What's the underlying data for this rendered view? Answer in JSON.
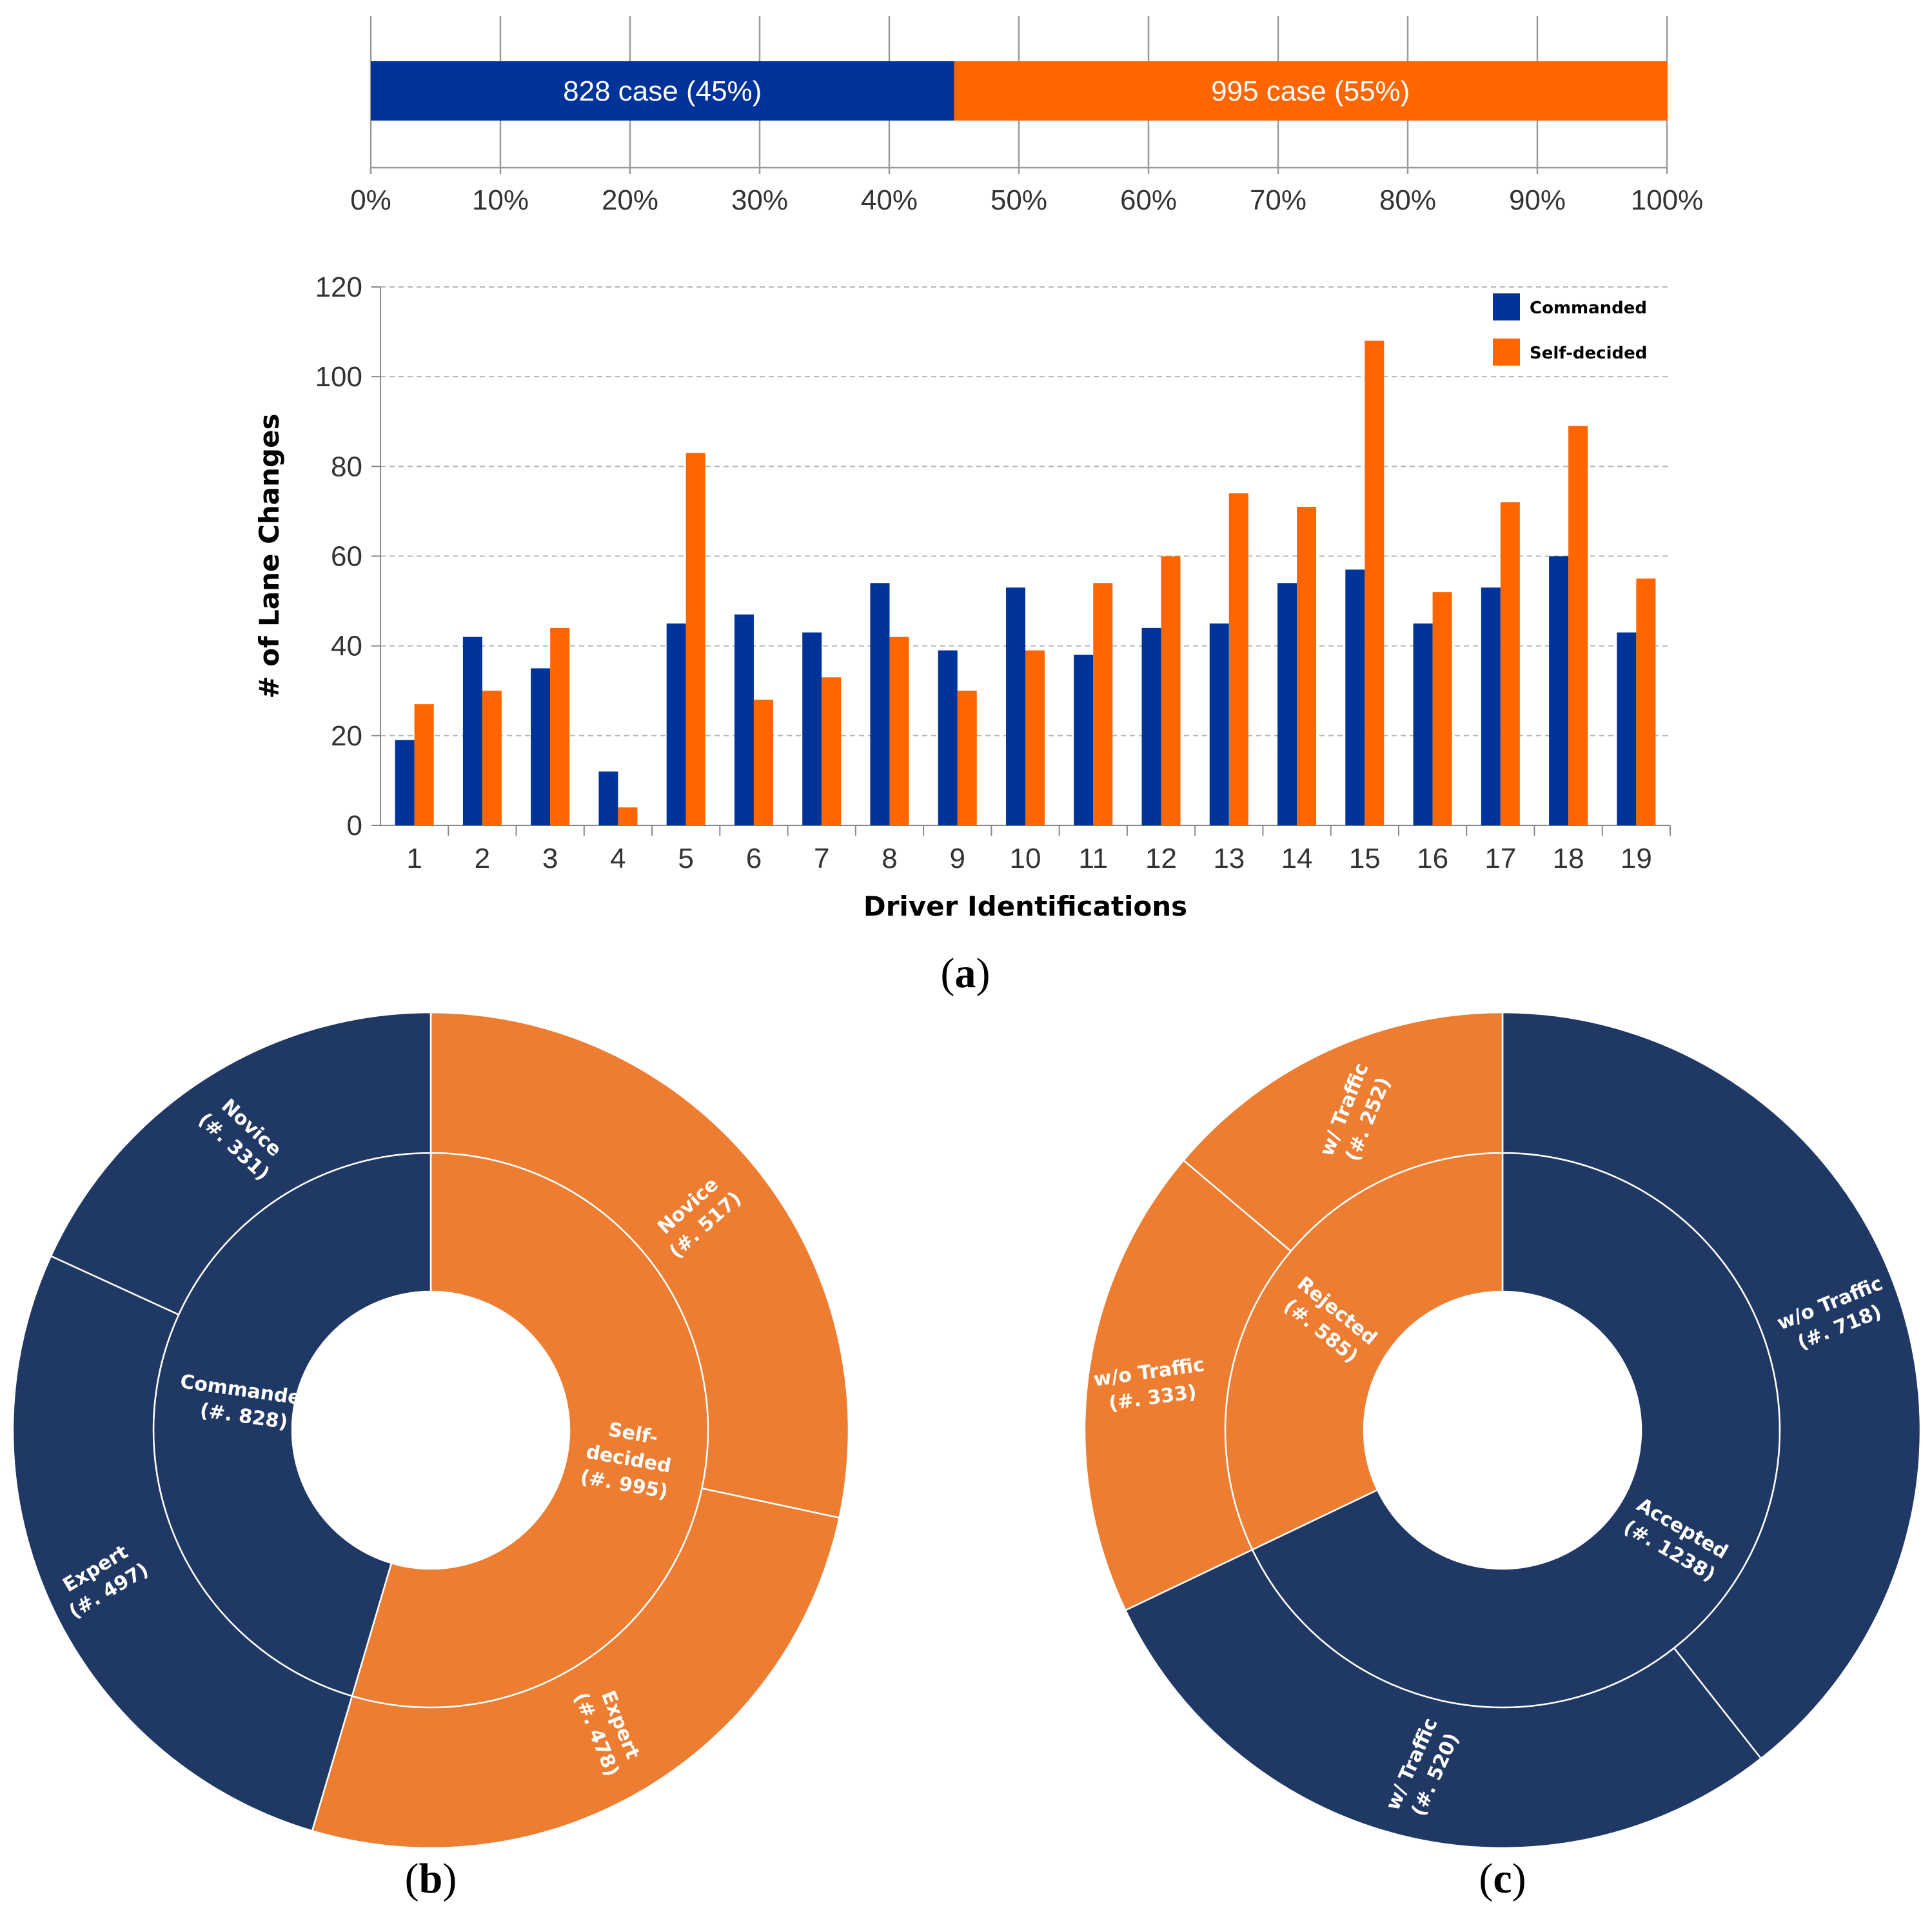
{
  "colors": {
    "commanded": "#003399",
    "self_decided": "#ff6600",
    "navy": "#203864",
    "orange": "#ed7d31"
  },
  "chart_data": [
    {
      "id": "a-top",
      "type": "bar",
      "orientation": "horizontal-stacked-100",
      "series": [
        {
          "name": "Commanded",
          "value": 45,
          "label": "828 case (45%)"
        },
        {
          "name": "Self-decided",
          "value": 55,
          "label": "995 case (55%)"
        }
      ],
      "xlim": [
        0,
        100
      ],
      "xticks": [
        "0%",
        "10%",
        "20%",
        "30%",
        "40%",
        "50%",
        "60%",
        "70%",
        "80%",
        "90%",
        "100%"
      ]
    },
    {
      "id": "a-bottom",
      "type": "bar",
      "categories": [
        "1",
        "2",
        "3",
        "4",
        "5",
        "6",
        "7",
        "8",
        "9",
        "10",
        "11",
        "12",
        "13",
        "14",
        "15",
        "16",
        "17",
        "18",
        "19"
      ],
      "series": [
        {
          "name": "Commanded",
          "values": [
            19,
            42,
            35,
            12,
            45,
            47,
            43,
            54,
            39,
            53,
            38,
            44,
            45,
            54,
            57,
            45,
            53,
            60,
            43
          ]
        },
        {
          "name": "Self-decided",
          "values": [
            27,
            30,
            44,
            4,
            83,
            28,
            33,
            42,
            30,
            39,
            54,
            60,
            74,
            71,
            108,
            52,
            72,
            89,
            55
          ]
        }
      ],
      "xlabel": "Driver  Identifications",
      "ylabel": "# of Lane Changes",
      "ylim": [
        0,
        120
      ],
      "yticks": [
        0,
        20,
        40,
        60,
        80,
        100,
        120
      ],
      "legend": "top-right",
      "grid": true
    },
    {
      "id": "b",
      "type": "pie",
      "subtype": "sunburst",
      "inner": [
        {
          "label": [
            "Commanded",
            "(#. 828)"
          ],
          "value": 828,
          "color": "navy"
        },
        {
          "label": [
            "Self-",
            "decided",
            "(#. 995)"
          ],
          "value": 995,
          "color": "orange"
        }
      ],
      "outer": [
        {
          "label": [
            "Novice",
            "(#. 331)"
          ],
          "value": 331,
          "color": "navy"
        },
        {
          "label": [
            "Expert",
            "(#. 497)"
          ],
          "value": 497,
          "color": "navy"
        },
        {
          "label": [
            "Novice",
            "(#. 517)"
          ],
          "value": 517,
          "color": "orange"
        },
        {
          "label": [
            "Expert",
            "(#. 478)"
          ],
          "value": 478,
          "color": "orange"
        }
      ]
    },
    {
      "id": "c",
      "type": "pie",
      "subtype": "sunburst",
      "inner": [
        {
          "label": [
            "Accepted",
            "(#. 1238)"
          ],
          "value": 1238,
          "color": "navy"
        },
        {
          "label": [
            "Rejected",
            "(#. 585)"
          ],
          "value": 585,
          "color": "orange"
        }
      ],
      "outer": [
        {
          "label": [
            "w/o Traffic",
            "(#. 718)"
          ],
          "value": 718,
          "color": "navy"
        },
        {
          "label": [
            "w/ Traffic",
            "(#. 520)"
          ],
          "value": 520,
          "color": "navy"
        },
        {
          "label": [
            "w/o Traffic",
            "(#. 333)"
          ],
          "value": 333,
          "color": "orange"
        },
        {
          "label": [
            "w/ Traffic",
            "(#. 252)"
          ],
          "value": 252,
          "color": "orange"
        }
      ]
    }
  ],
  "panel_labels": {
    "a": {
      "open": "(",
      "letter": "a",
      "close": ")"
    },
    "b": {
      "open": "(",
      "letter": "b",
      "close": ")"
    },
    "c": {
      "open": "(",
      "letter": "c",
      "close": ")"
    }
  }
}
